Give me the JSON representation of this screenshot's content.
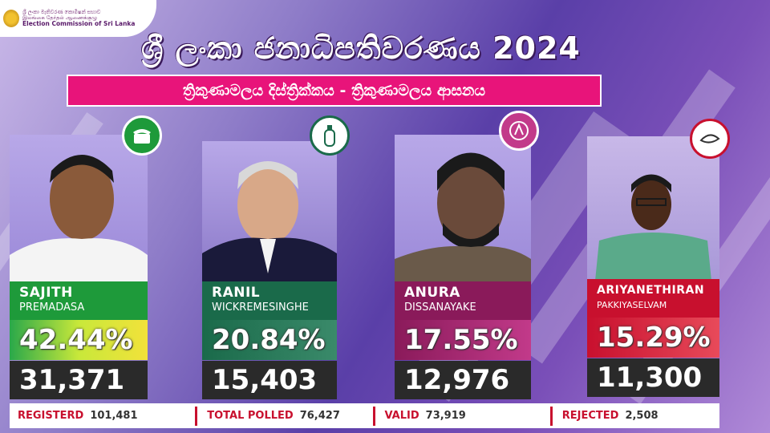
{
  "logo": {
    "line1": "ශ්‍රී ලංකා මැතිවරණ කොමිෂන් සභාව",
    "line2": "இலங்கை தேர்தல் ஆணைக்குழு",
    "line3": "Election Commission of Sri Lanka"
  },
  "header": {
    "title": "ශ්‍රී ලංකා ජනාධිපතිවරණය 2024",
    "subtitle": "ත්‍රිකුණාමලය දිස්ත්‍රික්කය - ත්‍රිකුණාමලය ආසනය"
  },
  "candidates": [
    {
      "first": "SAJITH",
      "last": "PREMADASA",
      "percent": "42.44%",
      "votes": "31,371",
      "symbol": "telephone-icon",
      "color": "#1e9a3a",
      "symbol_bg": "#1e9a3a"
    },
    {
      "first": "RANIL",
      "last": "WICKREMESINGHE",
      "percent": "20.84%",
      "votes": "15,403",
      "symbol": "gas-cylinder-icon",
      "color": "#1a6a4a",
      "symbol_bg": "#ffffff"
    },
    {
      "first": "ANURA",
      "last": "DISSANAYAKE",
      "percent": "17.55%",
      "votes": "12,976",
      "symbol": "compass-icon",
      "color": "#8a1a5a",
      "symbol_bg": "#c23a8a"
    },
    {
      "first": "ARIYANETHIRAN",
      "last": "PAKKIYASELVAM",
      "percent": "15.29%",
      "votes": "11,300",
      "symbol": "conch-shell-icon",
      "color": "#c8102e",
      "symbol_bg": "#ffffff"
    }
  ],
  "footer": {
    "registered_label": "REGISTERD",
    "registered_value": "101,481",
    "polled_label": "TOTAL POLLED",
    "polled_value": "76,427",
    "valid_label": "VALID",
    "valid_value": "73,919",
    "rejected_label": "REJECTED",
    "rejected_value": "2,508"
  }
}
